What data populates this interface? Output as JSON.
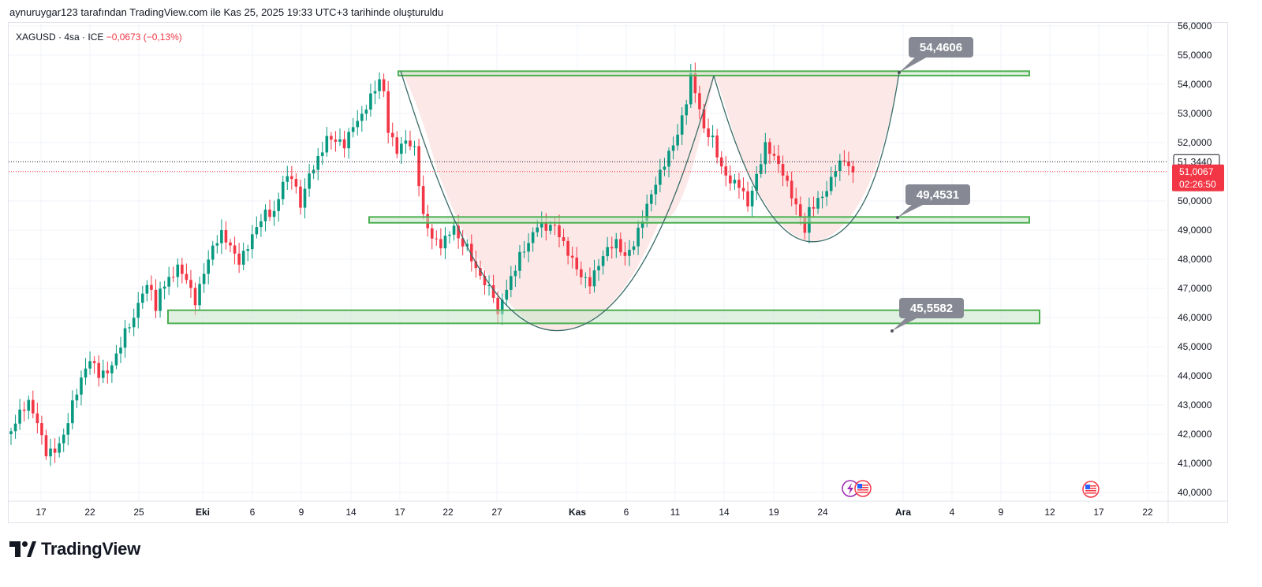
{
  "header": {
    "attribution": "aynuruygar123 tarafından TradingView.com ile Kas 25, 2025 19:33 UTC+3 tarihinde oluşturuldu"
  },
  "legend": {
    "symbol": "XAGUSD · 4sa · ICE",
    "change": "−0,0673 (−0,13%)"
  },
  "chart_data": {
    "type": "candlestick",
    "symbol": "XAGUSD",
    "interval": "4sa",
    "source": "ICE",
    "ylim": [
      40,
      56
    ],
    "y_ticks": [
      "40,0000",
      "41,0000",
      "42,0000",
      "43,0000",
      "44,0000",
      "45,0000",
      "46,0000",
      "47,0000",
      "48,0000",
      "49,0000",
      "50,0000",
      "51,0000",
      "52,0000",
      "53,0000",
      "54,0000",
      "55,0000",
      "56,0000"
    ],
    "x_ticks": [
      "17",
      "22",
      "25",
      "Eki",
      "6",
      "9",
      "14",
      "17",
      "22",
      "27",
      "Kas",
      "6",
      "11",
      "14",
      "19",
      "24",
      "Ara",
      "4",
      "9",
      "12",
      "17",
      "22"
    ],
    "price_path": [
      [
        0,
        42.1
      ],
      [
        2,
        42.6
      ],
      [
        4,
        42.9
      ],
      [
        6,
        42.3
      ],
      [
        8,
        41.4
      ],
      [
        10,
        41.6
      ],
      [
        12,
        42.1
      ],
      [
        14,
        43.1
      ],
      [
        16,
        43.8
      ],
      [
        18,
        44.4
      ],
      [
        20,
        43.9
      ],
      [
        22,
        44.1
      ],
      [
        24,
        44.8
      ],
      [
        26,
        45.7
      ],
      [
        28,
        46.1
      ],
      [
        30,
        46.9
      ],
      [
        32,
        46.9
      ],
      [
        33,
        46.0
      ],
      [
        34,
        46.8
      ],
      [
        36,
        47.2
      ],
      [
        38,
        47.8
      ],
      [
        40,
        47.5
      ],
      [
        42,
        46.7
      ],
      [
        44,
        47.6
      ],
      [
        46,
        48.3
      ],
      [
        48,
        48.7
      ],
      [
        50,
        48.3
      ],
      [
        52,
        47.9
      ],
      [
        54,
        48.6
      ],
      [
        56,
        49.3
      ],
      [
        58,
        49.7
      ],
      [
        60,
        49.5
      ],
      [
        62,
        50.5
      ],
      [
        64,
        50.7
      ],
      [
        66,
        49.8
      ],
      [
        68,
        51.0
      ],
      [
        70,
        51.6
      ],
      [
        72,
        52.3
      ],
      [
        74,
        52.1
      ],
      [
        76,
        51.8
      ],
      [
        78,
        52.4
      ],
      [
        80,
        52.8
      ],
      [
        82,
        53.6
      ],
      [
        84,
        54.3
      ],
      [
        85,
        53.9
      ],
      [
        86,
        52.6
      ],
      [
        88,
        51.8
      ],
      [
        90,
        52.0
      ],
      [
        92,
        51.6
      ],
      [
        94,
        49.3
      ],
      [
        96,
        48.7
      ],
      [
        98,
        48.6
      ],
      [
        100,
        49.1
      ],
      [
        101,
        49.3
      ],
      [
        102,
        48.8
      ],
      [
        104,
        48.4
      ],
      [
        106,
        47.5
      ],
      [
        108,
        47.0
      ],
      [
        110,
        46.7
      ],
      [
        111,
        46.0
      ],
      [
        112,
        46.7
      ],
      [
        114,
        47.5
      ],
      [
        116,
        48.3
      ],
      [
        118,
        48.6
      ],
      [
        120,
        49.1
      ],
      [
        122,
        48.9
      ],
      [
        124,
        49.0
      ],
      [
        126,
        48.5
      ],
      [
        128,
        48.1
      ],
      [
        130,
        47.6
      ],
      [
        132,
        47.3
      ],
      [
        134,
        47.8
      ],
      [
        136,
        48.2
      ],
      [
        138,
        48.4
      ],
      [
        140,
        48.0
      ],
      [
        142,
        48.6
      ],
      [
        144,
        49.6
      ],
      [
        146,
        50.4
      ],
      [
        148,
        51.0
      ],
      [
        150,
        51.5
      ],
      [
        152,
        52.1
      ],
      [
        154,
        53.3
      ],
      [
        155,
        54.2
      ],
      [
        156,
        53.8
      ],
      [
        158,
        52.6
      ],
      [
        160,
        52.3
      ],
      [
        162,
        51.2
      ],
      [
        164,
        50.6
      ],
      [
        166,
        50.4
      ],
      [
        168,
        49.7
      ],
      [
        170,
        50.8
      ],
      [
        172,
        52.0
      ],
      [
        174,
        51.7
      ],
      [
        176,
        51.1
      ],
      [
        178,
        50.2
      ],
      [
        180,
        49.3
      ],
      [
        181,
        48.8
      ],
      [
        182,
        49.5
      ],
      [
        184,
        49.9
      ],
      [
        186,
        50.4
      ],
      [
        188,
        51.3
      ],
      [
        190,
        51.6
      ],
      [
        192,
        51.0
      ]
    ],
    "horizontal_zones": [
      {
        "label": "54,4606",
        "low": 54.3,
        "high": 54.45
      },
      {
        "label": "49,4531",
        "low": 49.25,
        "high": 49.45
      },
      {
        "label": "45,5582",
        "low": 45.8,
        "high": 46.25
      }
    ],
    "current_price": "51,3440",
    "last_price": "51,0067",
    "countdown": "02:26:50",
    "colors": {
      "up": "#089981",
      "down": "#f23645",
      "zone_line": "#4caf50",
      "zone_fill": "#c8e6c9",
      "cup_fill": "#fde8e8",
      "curve": "#3a6b66",
      "callout_bg": "#868993",
      "price_red": "#f23645"
    }
  },
  "branding": {
    "logo_text": "TradingView"
  }
}
